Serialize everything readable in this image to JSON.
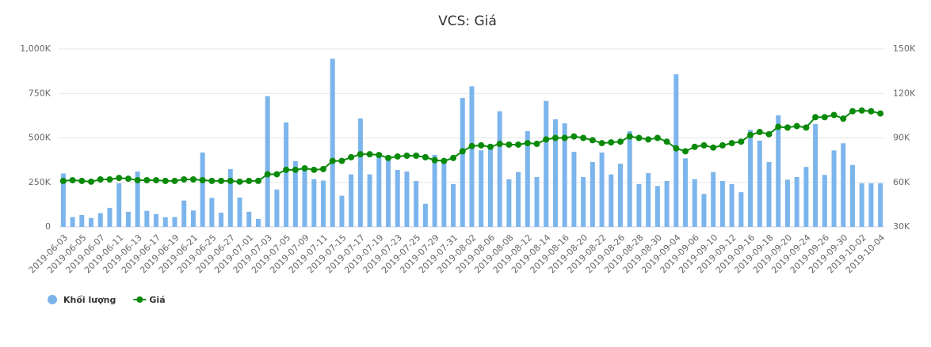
{
  "chart_data": {
    "type": "bar-line",
    "title": "VCS: Giá",
    "categories": [
      "2019-06-03",
      null,
      "2019-06-05",
      null,
      "2019-06-07",
      null,
      "2019-06-11",
      null,
      "2019-06-13",
      null,
      "2019-06-17",
      null,
      "2019-06-19",
      null,
      "2019-06-21",
      null,
      "2019-06-25",
      null,
      "2019-06-27",
      null,
      "2019-07-01",
      null,
      "2019-07-03",
      null,
      "2019-07-05",
      null,
      "2019-07-09",
      null,
      "2019-07-11",
      null,
      "2019-07-15",
      null,
      "2019-07-17",
      null,
      "2019-07-19",
      null,
      "2019-07-23",
      null,
      "2019-07-25",
      null,
      "2019-07-29",
      null,
      "2019-07-31",
      null,
      "2019-08-02",
      null,
      "2019-08-06",
      null,
      "2019-08-08",
      null,
      "2019-08-12",
      null,
      "2019-08-14",
      null,
      "2019-08-16",
      null,
      "2019-08-20",
      null,
      "2019-08-22",
      null,
      "2019-08-26",
      null,
      "2019-08-28",
      null,
      "2019-08-30",
      null,
      "2019-09-04",
      null,
      "2019-09-06",
      null,
      "2019-09-10",
      null,
      "2019-09-12",
      null,
      "2019-09-16",
      null,
      "2019-09-18",
      null,
      "2019-09-20",
      null,
      "2019-09-24",
      null,
      "2019-09-26",
      null,
      "2019-09-30",
      null,
      "2019-10-02",
      null,
      "2019-10-04"
    ],
    "series": [
      {
        "name": "Khối lượng",
        "type": "bar",
        "color": "#7cb5ec",
        "values": [
          300000,
          55000,
          67000,
          50000,
          77000,
          107000,
          245000,
          85000,
          311000,
          90000,
          72000,
          54000,
          55000,
          148000,
          92000,
          418000,
          163000,
          80000,
          325000,
          165000,
          85000,
          45000,
          735000,
          210000,
          587000,
          370000,
          335000,
          268000,
          260000,
          945000,
          175000,
          295000,
          610000,
          295000,
          400000,
          375000,
          320000,
          311000,
          258000,
          130000,
          405000,
          370000,
          240000,
          725000,
          790000,
          430000,
          445000,
          650000,
          268000,
          308000,
          538000,
          280000,
          708000,
          605000,
          582000,
          422000,
          280000,
          365000,
          418000,
          295000,
          355000,
          538000,
          240000,
          302000,
          230000,
          258000,
          858000,
          385000,
          268000,
          185000,
          308000,
          258000,
          240000,
          195000,
          545000,
          485000,
          365000,
          627000,
          265000,
          280000,
          337000,
          578000,
          292000,
          430000,
          470000,
          348000,
          245000,
          245000,
          245000
        ]
      },
      {
        "name": "Giá",
        "type": "line",
        "axis": "y2",
        "color": "#0a8a0a",
        "values": [
          61000,
          61500,
          61000,
          60500,
          62000,
          62000,
          63000,
          62500,
          61500,
          61500,
          61500,
          61000,
          61000,
          62000,
          62000,
          61500,
          61000,
          61000,
          61000,
          60500,
          61000,
          61000,
          65500,
          65500,
          68500,
          68500,
          69500,
          68500,
          69000,
          74500,
          74500,
          77000,
          79000,
          79000,
          78500,
          76500,
          77500,
          78000,
          78000,
          77000,
          75000,
          74500,
          76500,
          81000,
          84500,
          85000,
          84000,
          86000,
          85500,
          85500,
          86500,
          86000,
          89000,
          90000,
          90000,
          91000,
          90000,
          88500,
          86500,
          87000,
          87500,
          91000,
          90000,
          89000,
          90000,
          87500,
          83000,
          81000,
          84000,
          85000,
          83500,
          85000,
          86500,
          87500,
          92000,
          94000,
          92500,
          97500,
          97000,
          98000,
          97000,
          104000,
          104000,
          105500,
          103000,
          108000,
          108500,
          108000,
          106500
        ]
      }
    ],
    "ylim": [
      0,
      1000000
    ],
    "yticks": [
      0,
      {
        "value": 250000,
        "label": "250K"
      },
      {
        "value": 500000,
        "label": "500K"
      },
      {
        "value": 750000,
        "label": "750K"
      },
      {
        "value": 1000000,
        "label": "1,000K"
      }
    ],
    "y2lim": [
      30000,
      150000
    ],
    "y2ticks": [
      {
        "value": 30000,
        "label": "30K"
      },
      {
        "value": 60000,
        "label": "60K"
      },
      {
        "value": 90000,
        "label": "90K"
      },
      {
        "value": 120000,
        "label": "120K"
      },
      {
        "value": 150000,
        "label": "150K"
      }
    ],
    "grid": true,
    "legend": "bottom-left"
  }
}
